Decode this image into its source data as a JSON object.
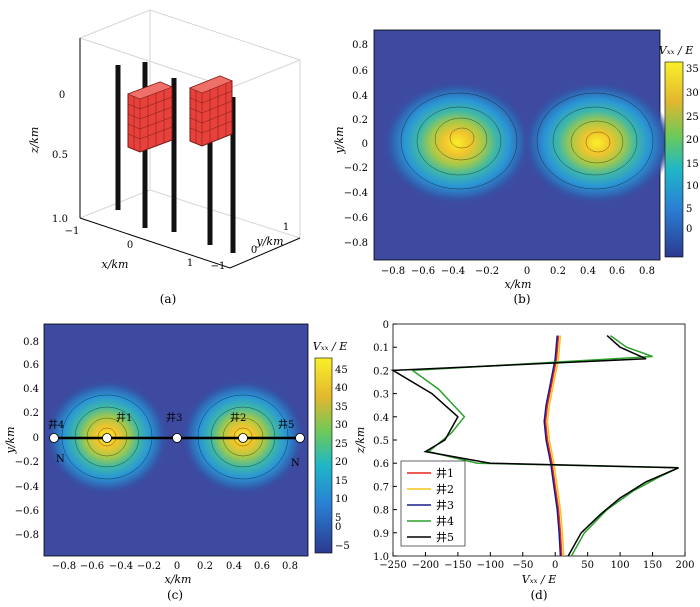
{
  "figure": {
    "captions": [
      "(a)",
      "(b)",
      "(c)",
      "(d)"
    ]
  },
  "panel_a": {
    "z_label": "z/km",
    "x_label": "x/km",
    "y_label": "y/km",
    "z_ticks": [
      "0",
      "0.5",
      "1.0"
    ],
    "x_ticks": [
      "−1",
      "0",
      "1"
    ],
    "y_ticks": [
      "1",
      "0",
      "−1"
    ],
    "body_color": "#e8413c",
    "well_color": "#000000"
  },
  "panel_b": {
    "cbar_title": "Vₓₓ / E",
    "cbar_ticks": [
      "35",
      "30",
      "25",
      "20",
      "15",
      "10",
      "5",
      "0"
    ],
    "x_ticks": [
      "−0.8",
      "−0.6",
      "−0.4",
      "−0.2",
      "0",
      "0.2",
      "0.4",
      "0.6",
      "0.8"
    ],
    "y_ticks": [
      "0.8",
      "0.6",
      "0.4",
      "0.2",
      "0",
      "−0.2",
      "−0.4",
      "−0.6",
      "−0.8"
    ],
    "x_label": "x/km",
    "y_label": "y/km"
  },
  "panel_c": {
    "cbar_title": "Vₓₓ / E",
    "cbar_ticks": [
      "45",
      "40",
      "35",
      "30",
      "25",
      "20",
      "15",
      "10",
      "5",
      "0",
      "−5"
    ],
    "x_ticks": [
      "−0.8",
      "−0.6",
      "−0.4",
      "−0.2",
      "0",
      "0.2",
      "0.4",
      "0.6",
      "0.8"
    ],
    "y_ticks": [
      "0.8",
      "0.6",
      "0.4",
      "0.2",
      "0",
      "−0.2",
      "−0.4",
      "−0.6",
      "−0.8"
    ],
    "x_label": "x/km",
    "y_label": "y/km",
    "well_labels": [
      "井4",
      "井1",
      "井3",
      "井2",
      "井5"
    ],
    "n_marks": [
      "N",
      "N"
    ]
  },
  "chart_data": {
    "type": "line",
    "title": "",
    "xlabel": "Vₓₓ / E",
    "ylabel": "z/km",
    "xlim": [
      -250,
      200
    ],
    "ylim": [
      1.0,
      0.0
    ],
    "x_ticks": [
      "−250",
      "−200",
      "−150",
      "−100",
      "−50",
      "0",
      "50",
      "100",
      "150",
      "200"
    ],
    "y_ticks": [
      "0",
      "0.1",
      "0.2",
      "0.3",
      "0.4",
      "0.5",
      "0.6",
      "0.7",
      "0.8",
      "0.9",
      "1.0"
    ],
    "series": [
      {
        "name": "井1",
        "color": "#e8241c",
        "points": [
          [
            5,
            0.05
          ],
          [
            2,
            0.15
          ],
          [
            -5,
            0.25
          ],
          [
            -12,
            0.35
          ],
          [
            -15,
            0.42
          ],
          [
            -12,
            0.5
          ],
          [
            -5,
            0.6
          ],
          [
            0,
            0.7
          ],
          [
            5,
            0.8
          ],
          [
            8,
            0.9
          ],
          [
            10,
            1.0
          ]
        ]
      },
      {
        "name": "井2",
        "color": "#f5c518",
        "points": [
          [
            8,
            0.05
          ],
          [
            5,
            0.15
          ],
          [
            -2,
            0.25
          ],
          [
            -9,
            0.35
          ],
          [
            -12,
            0.42
          ],
          [
            -9,
            0.5
          ],
          [
            -2,
            0.6
          ],
          [
            3,
            0.7
          ],
          [
            8,
            0.8
          ],
          [
            11,
            0.9
          ],
          [
            13,
            1.0
          ]
        ]
      },
      {
        "name": "井3",
        "color": "#1a1a8c",
        "points": [
          [
            3,
            0.05
          ],
          [
            0,
            0.15
          ],
          [
            -7,
            0.25
          ],
          [
            -14,
            0.35
          ],
          [
            -17,
            0.42
          ],
          [
            -14,
            0.5
          ],
          [
            -7,
            0.6
          ],
          [
            -2,
            0.7
          ],
          [
            3,
            0.8
          ],
          [
            6,
            0.9
          ],
          [
            8,
            1.0
          ]
        ]
      },
      {
        "name": "井4",
        "color": "#2ca02c",
        "points": [
          [
            85,
            0.05
          ],
          [
            110,
            0.1
          ],
          [
            150,
            0.14
          ],
          [
            -220,
            0.2
          ],
          [
            -180,
            0.28
          ],
          [
            -140,
            0.4
          ],
          [
            -160,
            0.47
          ],
          [
            -195,
            0.55
          ],
          [
            -120,
            0.6
          ],
          [
            190,
            0.62
          ],
          [
            160,
            0.66
          ],
          [
            120,
            0.72
          ],
          [
            80,
            0.8
          ],
          [
            45,
            0.9
          ],
          [
            25,
            1.0
          ]
        ]
      },
      {
        "name": "井5",
        "color": "#000000",
        "points": [
          [
            80,
            0.05
          ],
          [
            100,
            0.1
          ],
          [
            140,
            0.15
          ],
          [
            -250,
            0.2
          ],
          [
            -190,
            0.3
          ],
          [
            -150,
            0.4
          ],
          [
            -170,
            0.5
          ],
          [
            -200,
            0.55
          ],
          [
            -100,
            0.6
          ],
          [
            190,
            0.62
          ],
          [
            140,
            0.68
          ],
          [
            100,
            0.75
          ],
          [
            70,
            0.82
          ],
          [
            40,
            0.9
          ],
          [
            20,
            1.0
          ]
        ]
      }
    ]
  }
}
